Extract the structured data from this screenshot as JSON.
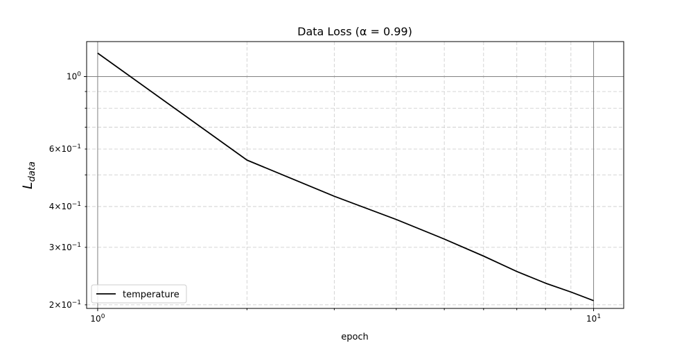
{
  "chart_data": {
    "type": "line",
    "title": "Data Loss (α = 0.99)",
    "xlabel": "epoch",
    "ylabel_main": "L",
    "ylabel_sub": "data",
    "x_scale": "log",
    "y_scale": "log",
    "xlim": [
      0.95,
      11.5
    ],
    "ylim": [
      0.195,
      1.28
    ],
    "grid": true,
    "legend_position": "lower-left",
    "x_major_ticks": [
      {
        "value": 1,
        "base": "10",
        "exp": "0"
      },
      {
        "value": 10,
        "base": "10",
        "exp": "1"
      }
    ],
    "x_minor_ticks": [
      2,
      3,
      4,
      5,
      6,
      7,
      8,
      9
    ],
    "y_major_ticks": [
      {
        "value": 1.0,
        "mant": "",
        "exp": "0"
      }
    ],
    "y_minor_ticks": [
      {
        "value": 0.6,
        "mant": "6",
        "exp": "−1"
      },
      {
        "value": 0.4,
        "mant": "4",
        "exp": "−1"
      },
      {
        "value": 0.3,
        "mant": "3",
        "exp": "−1"
      },
      {
        "value": 0.2,
        "mant": "2",
        "exp": "−1"
      }
    ],
    "y_minor_unlabeled": [
      0.5,
      0.7,
      0.8,
      0.9
    ],
    "reference_lines": {
      "x": [
        1,
        10
      ],
      "y": [
        1.0
      ]
    },
    "series": [
      {
        "name": "temperature",
        "color": "#000000",
        "x": [
          1,
          2,
          3,
          4,
          5,
          6,
          7,
          8,
          9,
          10
        ],
        "y": [
          1.18,
          0.555,
          0.43,
          0.365,
          0.318,
          0.282,
          0.253,
          0.233,
          0.219,
          0.206
        ]
      }
    ]
  }
}
